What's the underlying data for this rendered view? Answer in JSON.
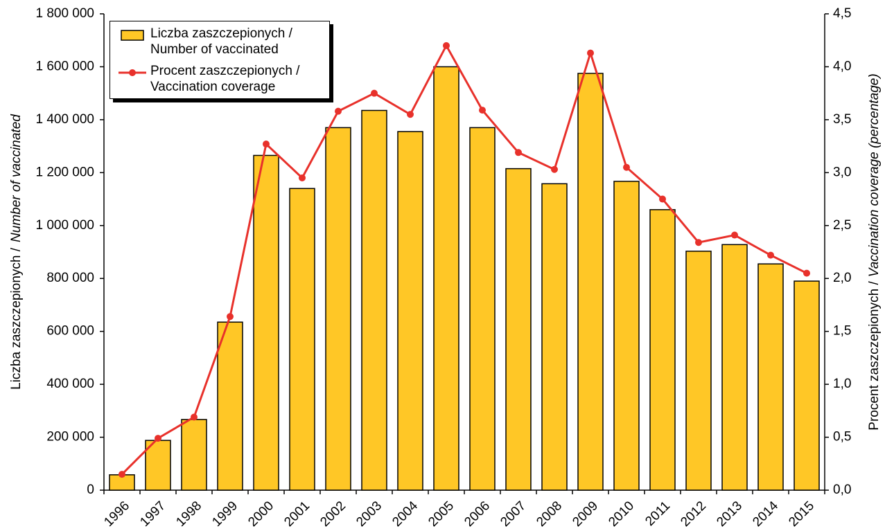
{
  "chart_data": {
    "type": "bar-line",
    "ylabel": [
      "Liczba zaszczepionych /",
      "Number of vaccinated"
    ],
    "y2label": [
      "Procent zaszczepionych /",
      "Vaccination coverage (percentage)"
    ],
    "categories": [
      "1996",
      "1997",
      "1998",
      "1999",
      "2000",
      "2001",
      "2002",
      "2003",
      "2004",
      "2005",
      "2006",
      "2007",
      "2008",
      "2009",
      "2010",
      "2011",
      "2012",
      "2013",
      "2014",
      "2015"
    ],
    "series": [
      {
        "name": "Liczba zaszczepionych / Number of vaccinated",
        "type": "bar",
        "color": "#ffc726",
        "values": [
          58000,
          188000,
          267000,
          635000,
          1265000,
          1140000,
          1370000,
          1435000,
          1355000,
          1600000,
          1370000,
          1215000,
          1158000,
          1575000,
          1167000,
          1060000,
          903000,
          928000,
          855000,
          790000
        ]
      },
      {
        "name": "Procent zaszczepionych / Vaccination coverage",
        "type": "line",
        "axis": "y2",
        "color": "#e8312b",
        "values": [
          0.15,
          0.49,
          0.69,
          1.64,
          3.27,
          2.95,
          3.58,
          3.75,
          3.55,
          4.2,
          3.59,
          3.19,
          3.03,
          4.13,
          3.05,
          2.75,
          2.34,
          2.41,
          2.22,
          2.05
        ]
      }
    ],
    "ylim": [
      0,
      1800000
    ],
    "yticks": [
      0,
      {
        "value": 200000,
        "label": "200 000"
      },
      {
        "value": 400000,
        "label": "400 000"
      },
      {
        "value": 600000,
        "label": "600 000"
      },
      {
        "value": 800000,
        "label": "800 000"
      },
      {
        "value": 1000000,
        "label": "1 000 000"
      },
      {
        "value": 1200000,
        "label": "1 200 000"
      },
      {
        "value": 1400000,
        "label": "1 400 000"
      },
      {
        "value": 1600000,
        "label": "1 600 000"
      },
      {
        "value": 1800000,
        "label": "1 800 000"
      }
    ],
    "y2lim": [
      0,
      4.5
    ],
    "y2ticks": [
      {
        "value": 0,
        "label": "0,0"
      },
      {
        "value": 0.5,
        "label": "0,5"
      },
      {
        "value": 1,
        "label": "1,0"
      },
      {
        "value": 1.5,
        "label": "1,5"
      },
      {
        "value": 2,
        "label": "2,0"
      },
      {
        "value": 2.5,
        "label": "2,5"
      },
      {
        "value": 3,
        "label": "3,0"
      },
      {
        "value": 3.5,
        "label": "3,5"
      },
      {
        "value": 4,
        "label": "4,0"
      },
      {
        "value": 4.5,
        "label": "4,5"
      }
    ]
  }
}
